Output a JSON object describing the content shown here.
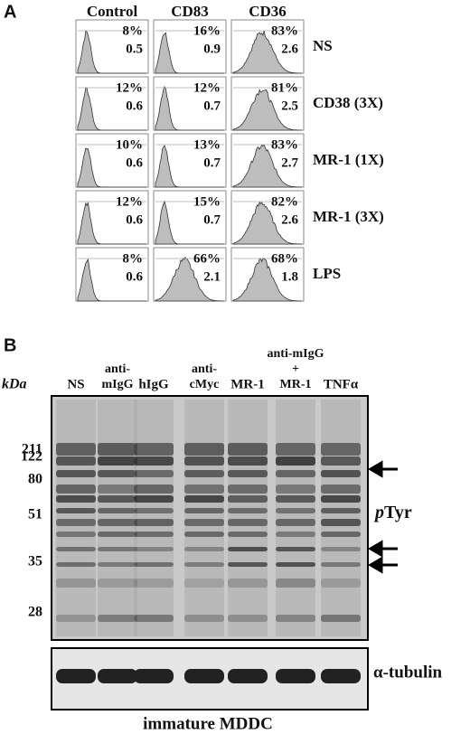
{
  "panel_a": {
    "label": "A",
    "columns": [
      "Control",
      "CD83",
      "CD36"
    ],
    "rows": [
      {
        "label": "NS",
        "cells": [
          [
            "8%",
            "0.5"
          ],
          [
            "16%",
            "0.9"
          ],
          [
            "83%",
            "2.6"
          ]
        ]
      },
      {
        "label": "CD38 (3X)",
        "cells": [
          [
            "12%",
            "0.6"
          ],
          [
            "12%",
            "0.7"
          ],
          [
            "81%",
            "2.5"
          ]
        ]
      },
      {
        "label": "MR-1 (1X)",
        "cells": [
          [
            "10%",
            "0.6"
          ],
          [
            "13%",
            "0.7"
          ],
          [
            "83%",
            "2.7"
          ]
        ]
      },
      {
        "label": "MR-1 (3X)",
        "cells": [
          [
            "12%",
            "0.6"
          ],
          [
            "15%",
            "0.7"
          ],
          [
            "82%",
            "2.6"
          ]
        ]
      },
      {
        "label": "LPS",
        "cells": [
          [
            "8%",
            "0.6"
          ],
          [
            "66%",
            "2.1"
          ],
          [
            "68%",
            "1.8"
          ]
        ]
      }
    ]
  },
  "panel_b": {
    "label": "B",
    "unit": "kDa",
    "lanes": [
      [
        "NS"
      ],
      [
        "anti-",
        "mIgG"
      ],
      [
        "hIgG"
      ],
      [
        "anti-",
        "cMyc"
      ],
      [
        "MR-1"
      ],
      [
        "anti-mIgG",
        "+",
        "MR-1"
      ],
      [
        "TNFα"
      ]
    ],
    "markers": [
      "211",
      "122",
      "80",
      "51",
      "35",
      "28"
    ],
    "ptyr_label": [
      "p",
      "Tyr"
    ],
    "tubulin_label": "α-tubulin",
    "caption": "immature MDDC"
  }
}
